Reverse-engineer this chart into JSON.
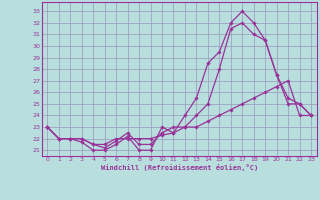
{
  "background_color": "#b8dede",
  "grid_color": "#9999bb",
  "line_color": "#993399",
  "xlabel": "Windchill (Refroidissement éolien,°C)",
  "yticks": [
    21,
    22,
    23,
    24,
    25,
    26,
    27,
    28,
    29,
    30,
    31,
    32,
    33
  ],
  "xticks": [
    0,
    1,
    2,
    3,
    4,
    5,
    6,
    7,
    8,
    9,
    10,
    11,
    12,
    13,
    14,
    15,
    16,
    17,
    18,
    19,
    20,
    21,
    22,
    23
  ],
  "xlim": [
    -0.5,
    23.5
  ],
  "ylim": [
    20.5,
    33.8
  ],
  "series": [
    {
      "x": [
        0,
        1,
        2,
        3,
        4,
        5,
        6,
        7,
        8,
        9,
        10,
        11,
        12,
        13,
        14,
        15,
        16,
        17,
        18,
        19,
        20,
        21,
        22,
        23
      ],
      "y": [
        23,
        22,
        22,
        21.7,
        21,
        21,
        21.5,
        22.2,
        21,
        21,
        23,
        22.5,
        24,
        25.5,
        28.5,
        29.5,
        32,
        33,
        32,
        30.5,
        27.5,
        25.5,
        25,
        24
      ]
    },
    {
      "x": [
        0,
        1,
        2,
        3,
        4,
        5,
        6,
        7,
        8,
        9,
        10,
        11,
        12,
        13,
        14,
        15,
        16,
        17,
        18,
        19,
        20,
        21,
        22,
        23
      ],
      "y": [
        23,
        22,
        22,
        22,
        21.5,
        21.2,
        21.8,
        22.5,
        21.5,
        21.5,
        22.5,
        23,
        23,
        24,
        25,
        28,
        31.5,
        32,
        31,
        30.5,
        27.5,
        25,
        25,
        24
      ]
    },
    {
      "x": [
        0,
        1,
        2,
        3,
        4,
        5,
        6,
        7,
        8,
        9,
        10,
        11,
        12,
        13,
        14,
        15,
        16,
        17,
        18,
        19,
        20,
        21,
        22,
        23
      ],
      "y": [
        23,
        22,
        22,
        22,
        21.5,
        21.5,
        22,
        22,
        22,
        22,
        22.3,
        22.5,
        23,
        23,
        23.5,
        24,
        24.5,
        25,
        25.5,
        26,
        26.5,
        27,
        24,
        24
      ]
    }
  ]
}
